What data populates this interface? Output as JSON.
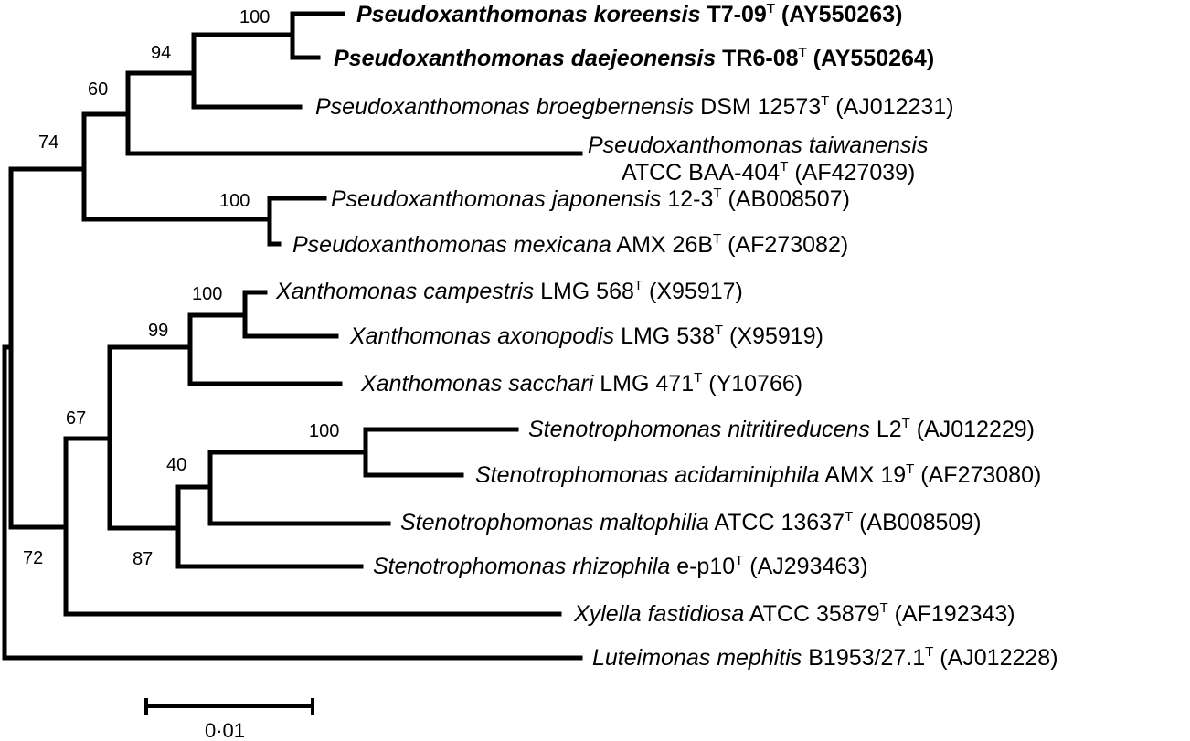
{
  "taxa": [
    {
      "id": "p-koreensis",
      "genus": "Pseudoxanthomonas",
      "species": "koreensis",
      "strain": "T7-09",
      "type_mark": "T",
      "accession": "(AY550263)",
      "bold": true
    },
    {
      "id": "p-daejeonensis",
      "genus": "Pseudoxanthomonas",
      "species": "daejeonensis",
      "strain": "TR6-08",
      "type_mark": "T",
      "accession": "(AY550264)",
      "bold": true
    },
    {
      "id": "p-broegbernensis",
      "genus": "Pseudoxanthomonas",
      "species": "broegbernensis",
      "strain": "DSM 12573",
      "type_mark": "T",
      "accession": "(AJ012231)",
      "bold": false
    },
    {
      "id": "p-taiwanensis",
      "genus": "Pseudoxanthomonas",
      "species": "taiwanensis",
      "strain": "ATCC BAA-404",
      "type_mark": "T",
      "accession": "(AF427039)",
      "bold": false,
      "two_line": true
    },
    {
      "id": "p-japonensis",
      "genus": "Pseudoxanthomonas",
      "species": "japonensis",
      "strain": "12-3",
      "type_mark": "T",
      "accession": "(AB008507)",
      "bold": false
    },
    {
      "id": "p-mexicana",
      "genus": "Pseudoxanthomonas",
      "species": "mexicana",
      "strain": "AMX 26B",
      "type_mark": "T",
      "accession": "(AF273082)",
      "bold": false
    },
    {
      "id": "x-campestris",
      "genus": "Xanthomonas",
      "species": "campestris",
      "strain": "LMG 568",
      "type_mark": "T",
      "accession": "(X95917)",
      "bold": false
    },
    {
      "id": "x-axonopodis",
      "genus": "Xanthomonas",
      "species": "axonopodis",
      "strain": "LMG 538",
      "type_mark": "T",
      "accession": "(X95919)",
      "bold": false
    },
    {
      "id": "x-sacchari",
      "genus": "Xanthomonas",
      "species": "sacchari",
      "strain": "LMG 471",
      "type_mark": "T",
      "accession": "(Y10766)",
      "bold": false
    },
    {
      "id": "s-nitritireducens",
      "genus": "Stenotrophomonas",
      "species": "nitritireducens",
      "strain": "L2",
      "type_mark": "T",
      "accession": "(AJ012229)",
      "bold": false
    },
    {
      "id": "s-acidaminiphila",
      "genus": "Stenotrophomonas",
      "species": "acidaminiphila",
      "strain": "AMX 19",
      "type_mark": "T",
      "accession": "(AF273080)",
      "bold": false
    },
    {
      "id": "s-maltophilia",
      "genus": "Stenotrophomonas",
      "species": "maltophilia",
      "strain": "ATCC 13637",
      "type_mark": "T",
      "accession": "(AB008509)",
      "bold": false
    },
    {
      "id": "s-rhizophila",
      "genus": "Stenotrophomonas",
      "species": "rhizophila",
      "strain": "e-p10",
      "type_mark": "T",
      "accession": "(AJ293463)",
      "bold": false
    },
    {
      "id": "xy-fastidiosa",
      "genus": "Xylella",
      "species": "fastidiosa",
      "strain": "ATCC 35879",
      "type_mark": "T",
      "accession": "(AF192343)",
      "bold": false
    },
    {
      "id": "l-mephitis",
      "genus": "Luteimonas",
      "species": "mephitis",
      "strain": "B1953/27.1",
      "type_mark": "T",
      "accession": "(AJ012228)",
      "bold": false
    }
  ],
  "bootstrap": [
    "100",
    "94",
    "60",
    "74",
    "100",
    "100",
    "99",
    "100",
    "40",
    "87",
    "67",
    "72"
  ],
  "scale": {
    "label": "0·01"
  }
}
